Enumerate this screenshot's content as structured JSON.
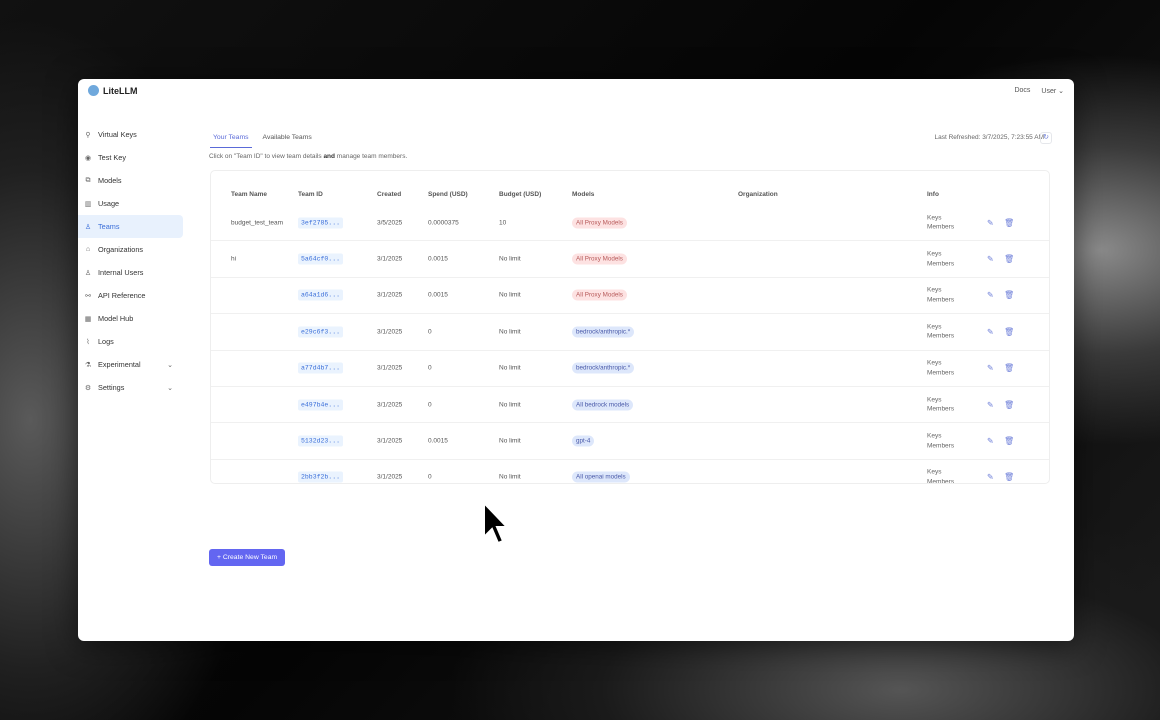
{
  "app": {
    "name": "LiteLLM"
  },
  "topbar": {
    "docs": "Docs",
    "user": "User"
  },
  "sidebar": {
    "items": [
      {
        "label": "Virtual Keys",
        "icon": "key-icon",
        "glyph": "⚲"
      },
      {
        "label": "Test Key",
        "icon": "play-circle-icon",
        "glyph": "◉"
      },
      {
        "label": "Models",
        "icon": "models-icon",
        "glyph": "⧉"
      },
      {
        "label": "Usage",
        "icon": "bar-chart-icon",
        "glyph": "▥"
      },
      {
        "label": "Teams",
        "icon": "team-icon",
        "glyph": "♙",
        "active": true
      },
      {
        "label": "Organizations",
        "icon": "bank-icon",
        "glyph": "⌂"
      },
      {
        "label": "Internal Users",
        "icon": "user-icon",
        "glyph": "♙"
      },
      {
        "label": "API Reference",
        "icon": "api-icon",
        "glyph": "⚯"
      },
      {
        "label": "Model Hub",
        "icon": "appstore-icon",
        "glyph": "▦"
      },
      {
        "label": "Logs",
        "icon": "line-chart-icon",
        "glyph": "⌇"
      },
      {
        "label": "Experimental",
        "icon": "experiment-icon",
        "glyph": "⚗",
        "expandable": true
      },
      {
        "label": "Settings",
        "icon": "settings-icon",
        "glyph": "⚙",
        "expandable": true
      }
    ]
  },
  "tabs": [
    {
      "label": "Your Teams",
      "active": true
    },
    {
      "label": "Available Teams"
    }
  ],
  "hint": {
    "pre": "Click on \"Team ID\" to view team details ",
    "bold": "and",
    "post": " manage team members."
  },
  "refresh": {
    "label": "Last Refreshed: 3/7/2025, 7:23:55 AM"
  },
  "table": {
    "columns": [
      "Team Name",
      "Team ID",
      "Created",
      "Spend (USD)",
      "Budget (USD)",
      "Models",
      "Organization",
      "Info"
    ],
    "rows": [
      {
        "name": "budget_test_team",
        "id": "3ef2785...",
        "created": "3/5/2025",
        "spend": "0.0000375",
        "budget": "10",
        "model": "All Proxy Models",
        "model_color": "red",
        "org": "",
        "info": [
          "Keys",
          "Members"
        ]
      },
      {
        "name": "hi",
        "id": "5a64cf0...",
        "created": "3/1/2025",
        "spend": "0.0015",
        "budget": "No limit",
        "model": "All Proxy Models",
        "model_color": "red",
        "org": "",
        "info": [
          "Keys",
          "Members"
        ]
      },
      {
        "name": "",
        "id": "a64a1d6...",
        "created": "3/1/2025",
        "spend": "0.0015",
        "budget": "No limit",
        "model": "All Proxy Models",
        "model_color": "red",
        "org": "",
        "info": [
          "Keys",
          "Members"
        ]
      },
      {
        "name": "",
        "id": "e29c6f3...",
        "created": "3/1/2025",
        "spend": "0",
        "budget": "No limit",
        "model": "bedrock/anthropic.*",
        "model_color": "blue",
        "org": "",
        "info": [
          "Keys",
          "Members"
        ]
      },
      {
        "name": "",
        "id": "a77d4b7...",
        "created": "3/1/2025",
        "spend": "0",
        "budget": "No limit",
        "model": "bedrock/anthropic.*",
        "model_color": "blue",
        "org": "",
        "info": [
          "Keys",
          "Members"
        ]
      },
      {
        "name": "",
        "id": "e497b4e...",
        "created": "3/1/2025",
        "spend": "0",
        "budget": "No limit",
        "model": "All bedrock models",
        "model_color": "blue",
        "org": "",
        "info": [
          "Keys",
          "Members"
        ]
      },
      {
        "name": "",
        "id": "5132d23...",
        "created": "3/1/2025",
        "spend": "0.0015",
        "budget": "No limit",
        "model": "gpt-4",
        "model_color": "blue",
        "org": "",
        "info": [
          "Keys",
          "Members"
        ]
      },
      {
        "name": "",
        "id": "2bb3f2b...",
        "created": "3/1/2025",
        "spend": "0",
        "budget": "No limit",
        "model": "All openai models",
        "model_color": "blue",
        "org": "",
        "info": [
          "Keys",
          "Members"
        ]
      }
    ]
  },
  "create_button": "+ Create New Team",
  "colors": {
    "accent": "#6366f1",
    "active_bg": "#e8f1fd",
    "link": "#3b6fd9"
  }
}
